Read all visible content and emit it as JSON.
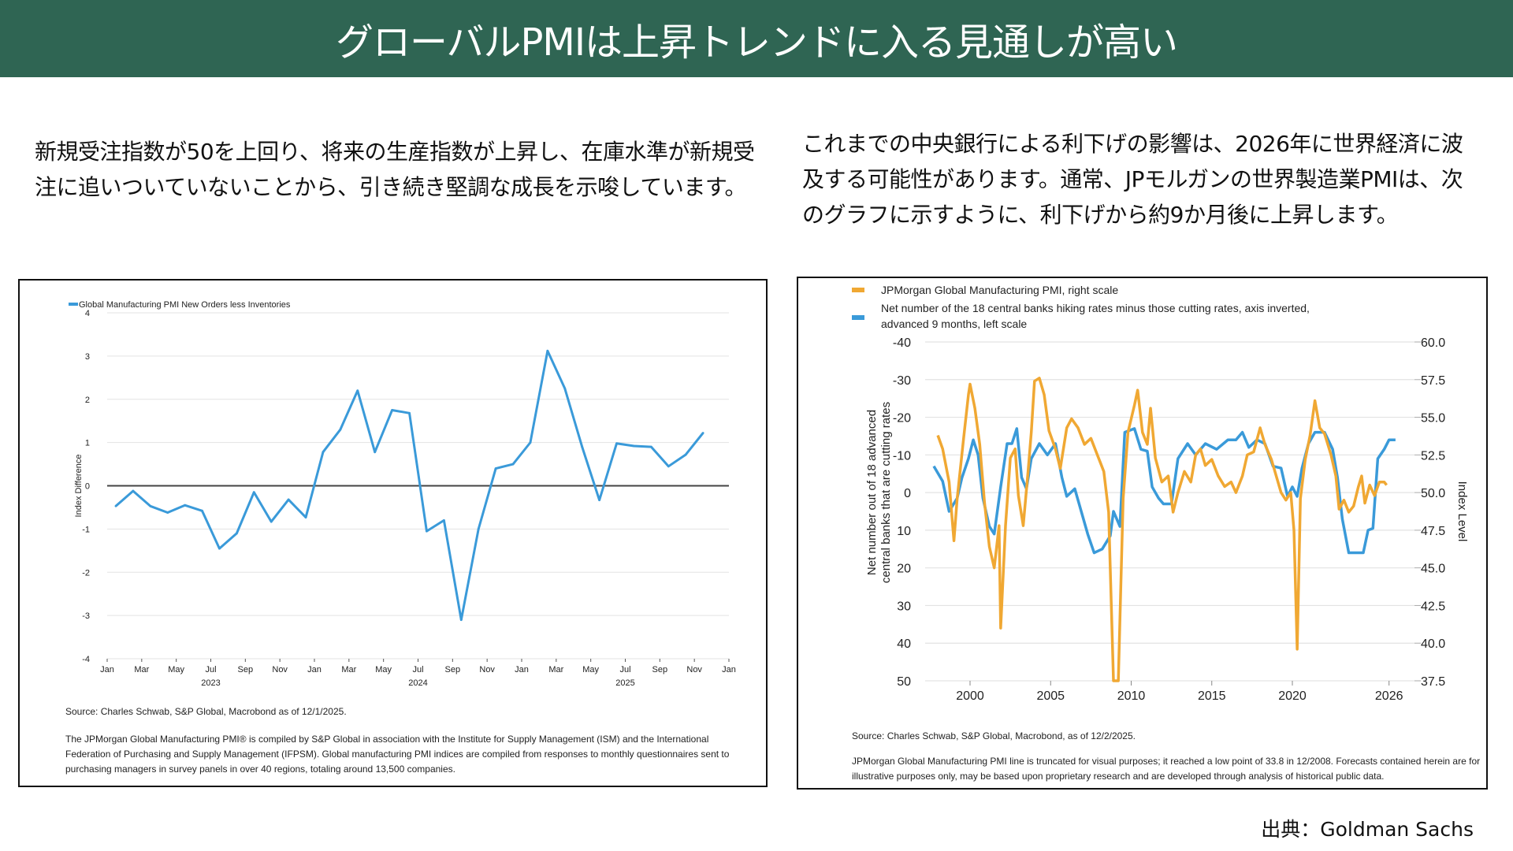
{
  "header": {
    "title": "グローバルPMIは上昇トレンドに入る見通しが高い"
  },
  "left_text": "新規受注指数が50を上回り、将来の生産指数が上昇し、在庫水準が新規受注に追いついていないことから、引き続き堅調な成長を示唆しています。",
  "right_text": "これまでの中央銀行による利下げの影響は、2026年に世界経済に波及する可能性があります。通常、JPモルガンの世界製造業PMIは、次のグラフに示すように、利下げから約9か月後に上昇します。",
  "left_notes": {
    "source": "Source: Charles Schwab, S&P Global, Macrobond as of 12/1/2025.",
    "disclaimer": "The JPMorgan Global Manufacturing PMI® is compiled by S&P Global in association with the Institute for Supply Management (ISM) and the International Federation of Purchasing and Supply Management (IFPSM). Global manufacturing PMI indices are compiled from responses to monthly questionnaires sent to purchasing managers in survey panels in over 40 regions, totaling around 13,500 companies."
  },
  "right_notes": {
    "source": "Source: Charles Schwab, S&P Global, Macrobond, as of 12/2/2025.",
    "disclaimer": "JPMorgan Global Manufacturing PMI line is truncated for visual purposes; it reached a low point of 33.8 in 12/2008. Forecasts contained herein are for illustrative purposes only, may be based upon proprietary research and are developed through analysis of historical public data."
  },
  "footer": {
    "credit": "出典：Goldman Sachs"
  },
  "chart_data": [
    {
      "type": "line",
      "title": "",
      "ylabel": "Index Difference",
      "xlabel": "",
      "ylim": [
        -4,
        4
      ],
      "yticks": [
        "4",
        "3",
        "2",
        "1",
        "0",
        "-1",
        "-2",
        "-3",
        "-4"
      ],
      "xtick_labels": [
        "Jan",
        "Mar",
        "May",
        "Jul",
        "Sep",
        "Nov",
        "Jan",
        "Mar",
        "May",
        "Jul",
        "Sep",
        "Nov",
        "Jan",
        "Mar",
        "May",
        "Jul",
        "Sep",
        "Nov",
        "Jan"
      ],
      "year_labels": [
        {
          "label": "2023",
          "month": "Jul"
        },
        {
          "label": "2024",
          "month": "Jul"
        },
        {
          "label": "2025",
          "month": "Jul"
        }
      ],
      "grid": true,
      "legend": "top-left",
      "colors": {
        "series": "#3a9ad9",
        "zero_line": "#444444",
        "grid": "#e3e3e3"
      },
      "series": [
        {
          "name": "Global Manufacturing PMI New Orders less Inventories",
          "x": [
            "2023-01",
            "2023-02",
            "2023-03",
            "2023-04",
            "2023-05",
            "2023-06",
            "2023-07",
            "2023-08",
            "2023-09",
            "2023-10",
            "2023-11",
            "2023-12",
            "2024-01",
            "2024-02",
            "2024-03",
            "2024-04",
            "2024-05",
            "2024-06",
            "2024-07",
            "2024-08",
            "2024-09",
            "2024-10",
            "2024-11",
            "2024-12",
            "2025-01",
            "2025-02",
            "2025-03",
            "2025-04",
            "2025-05",
            "2025-06",
            "2025-07",
            "2025-08",
            "2025-09",
            "2025-10",
            "2025-11"
          ],
          "values": [
            -0.47,
            -0.12,
            -0.47,
            -0.62,
            -0.45,
            -0.58,
            -1.45,
            -1.1,
            -0.15,
            -0.83,
            -0.32,
            -0.73,
            0.78,
            1.3,
            2.2,
            0.78,
            1.75,
            1.68,
            -1.05,
            -0.8,
            -3.1,
            -1.0,
            0.4,
            0.5,
            1.0,
            3.12,
            2.25,
            0.9,
            -0.33,
            0.98,
            0.92,
            0.9,
            0.45,
            0.72,
            1.22
          ]
        }
      ]
    },
    {
      "type": "line",
      "title": "",
      "ylabel_left": "Net number out of 18 advanced central banks that are cutting rates",
      "ylabel_right": "Index Level",
      "ylim_left": [
        50,
        -40
      ],
      "ylim_right": [
        37.5,
        60
      ],
      "yticks_left": [
        "-40",
        "-30",
        "-20",
        "-10",
        "0",
        "10",
        "20",
        "30",
        "40",
        "50"
      ],
      "yticks_right": [
        "60.0",
        "57.5",
        "55.0",
        "52.5",
        "50.0",
        "47.5",
        "45.0",
        "42.5",
        "40.0",
        "37.5"
      ],
      "xticks": [
        "2000",
        "2005",
        "2010",
        "2015",
        "2020",
        "2026"
      ],
      "xlim": [
        1997.2,
        2027.6
      ],
      "grid": true,
      "legend": "top-left",
      "colors": {
        "pmi": "#f0a833",
        "banks": "#3a9ad9",
        "grid": "#e3e3e3"
      },
      "series": [
        {
          "name": "JPMorgan Global Manufacturing PMI, right scale",
          "axis": "right",
          "x": [
            1998.0,
            1998.3,
            1998.7,
            1999.0,
            1999.2,
            1999.6,
            1999.9,
            2000.0,
            2000.3,
            2000.6,
            2000.9,
            2001.2,
            2001.5,
            2001.8,
            2001.9,
            2002.2,
            2002.5,
            2002.8,
            2003.0,
            2003.3,
            2003.6,
            2003.8,
            2004.0,
            2004.3,
            2004.6,
            2004.9,
            2005.3,
            2005.6,
            2006.0,
            2006.3,
            2006.7,
            2007.1,
            2007.5,
            2007.9,
            2008.3,
            2008.6,
            2008.9,
            2009.2,
            2009.5,
            2009.8,
            2010.2,
            2010.4,
            2010.7,
            2011.0,
            2011.2,
            2011.5,
            2011.9,
            2012.3,
            2012.6,
            2012.9,
            2013.3,
            2013.7,
            2014.0,
            2014.3,
            2014.6,
            2015.0,
            2015.4,
            2015.8,
            2016.2,
            2016.5,
            2016.9,
            2017.2,
            2017.6,
            2018.0,
            2018.3,
            2018.7,
            2019.0,
            2019.3,
            2019.6,
            2019.9,
            2020.1,
            2020.3,
            2020.5,
            2020.8,
            2021.1,
            2021.4,
            2021.7,
            2022.0,
            2022.4,
            2022.7,
            2022.9,
            2023.2,
            2023.5,
            2023.8,
            2024.1,
            2024.3,
            2024.5,
            2024.8,
            2025.1,
            2025.4,
            2025.7,
            2025.85
          ],
          "values": [
            53.8,
            52.9,
            50.7,
            46.8,
            49.6,
            53.6,
            56.5,
            57.2,
            55.6,
            53.2,
            49.3,
            46.4,
            45.0,
            47.8,
            41.0,
            47.8,
            52.3,
            52.9,
            49.8,
            47.8,
            51.4,
            54.0,
            57.4,
            57.6,
            56.5,
            54.1,
            52.9,
            51.6,
            54.3,
            54.9,
            54.3,
            53.2,
            53.6,
            52.5,
            51.4,
            48.7,
            37.5,
            37.5,
            49.6,
            54.0,
            55.8,
            56.8,
            54.0,
            53.2,
            55.6,
            52.3,
            50.7,
            51.1,
            48.7,
            50.0,
            51.4,
            50.7,
            52.5,
            52.9,
            51.8,
            52.2,
            51.1,
            50.4,
            50.7,
            50.0,
            51.1,
            52.5,
            52.7,
            54.3,
            53.2,
            52.2,
            51.1,
            50.0,
            49.5,
            50.0,
            47.5,
            39.6,
            49.6,
            52.2,
            53.8,
            56.1,
            54.3,
            53.9,
            52.5,
            51.1,
            48.9,
            49.5,
            48.7,
            49.1,
            50.4,
            51.1,
            49.3,
            50.5,
            49.8,
            50.7,
            50.7,
            50.5
          ]
        },
        {
          "name": "Net number of the 18 central banks hiking rates minus those cutting rates, axis inverted, advanced 9 months, left scale",
          "axis": "left",
          "x": [
            1997.75,
            1998.3,
            1998.7,
            1999.2,
            1999.5,
            1999.9,
            2000.2,
            2000.5,
            2000.8,
            2001.2,
            2001.5,
            2001.9,
            2002.3,
            2002.6,
            2002.9,
            2003.2,
            2003.5,
            2003.8,
            2004.3,
            2004.8,
            2005.3,
            2005.7,
            2006.0,
            2006.5,
            2006.9,
            2007.3,
            2007.7,
            2008.2,
            2008.7,
            2008.9,
            2009.3,
            2009.6,
            2010.2,
            2010.6,
            2011.0,
            2011.3,
            2011.7,
            2012.0,
            2012.5,
            2012.9,
            2013.5,
            2014.0,
            2014.6,
            2015.3,
            2016.0,
            2016.5,
            2016.9,
            2017.3,
            2017.8,
            2018.3,
            2018.8,
            2019.3,
            2019.7,
            2020.0,
            2020.3,
            2020.6,
            2021.0,
            2021.4,
            2022.0,
            2022.5,
            2022.8,
            2023.1,
            2023.5,
            2024.0,
            2024.4,
            2024.7,
            2025.0,
            2025.3,
            2025.7,
            2026.0,
            2026.4
          ],
          "values": [
            -7,
            -3,
            5,
            1.5,
            -4,
            -9,
            -14,
            -10,
            1.5,
            9,
            11,
            -1.5,
            -13,
            -13,
            -17,
            -4,
            -1,
            -9,
            -13,
            -10,
            -13,
            -4,
            1,
            -1,
            5,
            11,
            16,
            15,
            11.5,
            5,
            9,
            -16,
            -17,
            -11.5,
            -11,
            -1.5,
            1.5,
            3,
            3,
            -9,
            -13,
            -10,
            -13,
            -11.5,
            -14,
            -14,
            -16,
            -12,
            -14,
            -13,
            -7,
            -6.5,
            1,
            -1.5,
            1,
            -6.5,
            -13,
            -16,
            -16,
            -11.5,
            -4,
            7,
            16,
            16,
            16,
            10,
            9.5,
            -9,
            -11.5,
            -14,
            -14
          ]
        }
      ]
    }
  ]
}
